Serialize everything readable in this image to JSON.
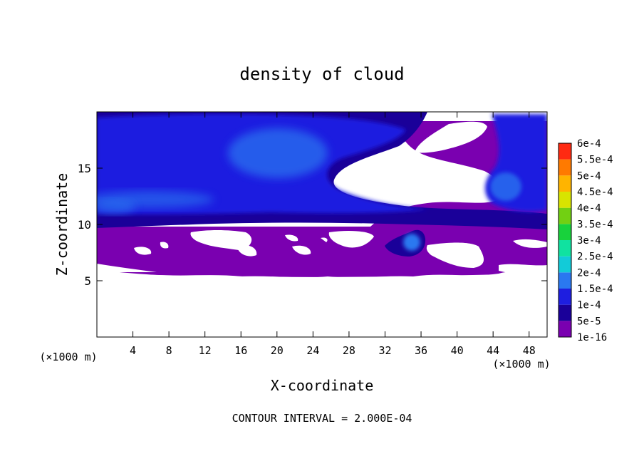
{
  "chart_data": {
    "type": "heatmap",
    "title": "density of cloud",
    "xlabel": "X-coordinate",
    "ylabel": "Z-coordinate",
    "x_unit": "(×1000 m)",
    "x_unit_right": "(×1000 m)",
    "xlim": [
      0,
      50
    ],
    "ylim": [
      0,
      20
    ],
    "xticks": [
      4,
      8,
      12,
      16,
      20,
      24,
      28,
      32,
      36,
      40,
      44,
      48
    ],
    "yticks": [
      5,
      10,
      15
    ],
    "footer": "CONTOUR INTERVAL = 2.000E-04",
    "colorbar": {
      "levels": [
        "1e-16",
        "5e-5",
        "1e-4",
        "1.5e-4",
        "2e-4",
        "2.5e-4",
        "3e-4",
        "3.5e-4",
        "4e-4",
        "4.5e-4",
        "5e-4",
        "5.5e-4",
        "6e-4"
      ],
      "colors": [
        "#7a00b0",
        "#1a0099",
        "#1e1ee0",
        "#2a78f0",
        "#12cbd8",
        "#10e2a0",
        "#18d23c",
        "#72d012",
        "#d8e400",
        "#ffb400",
        "#ff7a00",
        "#ff2a12",
        "#f57a7a"
      ]
    },
    "fields": {
      "cloud_base_z": 5.5,
      "purple_layer_top_z": 10,
      "cloud_top_z": 19.5
    }
  }
}
